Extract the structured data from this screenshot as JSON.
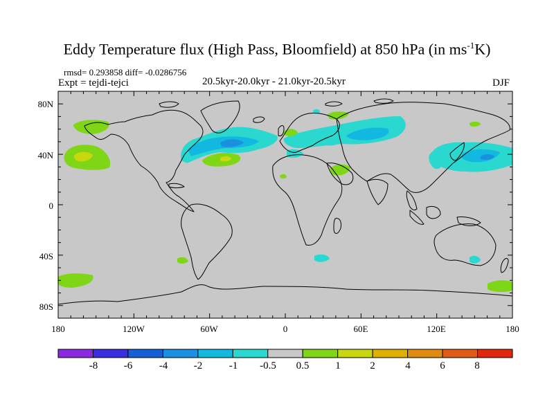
{
  "title": {
    "main": "Eddy Temperature flux (High Pass, Bloomfield) at 850 hPa (in ms",
    "sup": "-1",
    "end": "K)"
  },
  "stats": "rmsd= 0.293858 diff= -0.0286756",
  "expt": "Expt = tejdi-tejci",
  "period": "20.5kyr-20.0kyr - 21.0kyr-20.5kyr",
  "season": "DJF",
  "axes": {
    "lon_ticks": [
      "180",
      "120W",
      "60W",
      "0",
      "60E",
      "120E",
      "180"
    ],
    "lat_ticks": [
      "80N",
      "40N",
      "0",
      "40S",
      "80S"
    ]
  },
  "colorbar": {
    "labels": [
      "-8",
      "-6",
      "-4",
      "-2",
      "-1",
      "-0.5",
      "0.5",
      "1",
      "2",
      "4",
      "6",
      "8"
    ],
    "colors": [
      "#8a2be2",
      "#3a2ee0",
      "#1560d8",
      "#1a90e0",
      "#12b8e0",
      "#2ad8d0",
      "#c8c8c8",
      "#7ed616",
      "#c8d810",
      "#e0b000",
      "#e08a10",
      "#e05a18",
      "#e02810"
    ]
  },
  "palette": {
    "background": "#c8c8c8",
    "coast": "#000000"
  }
}
